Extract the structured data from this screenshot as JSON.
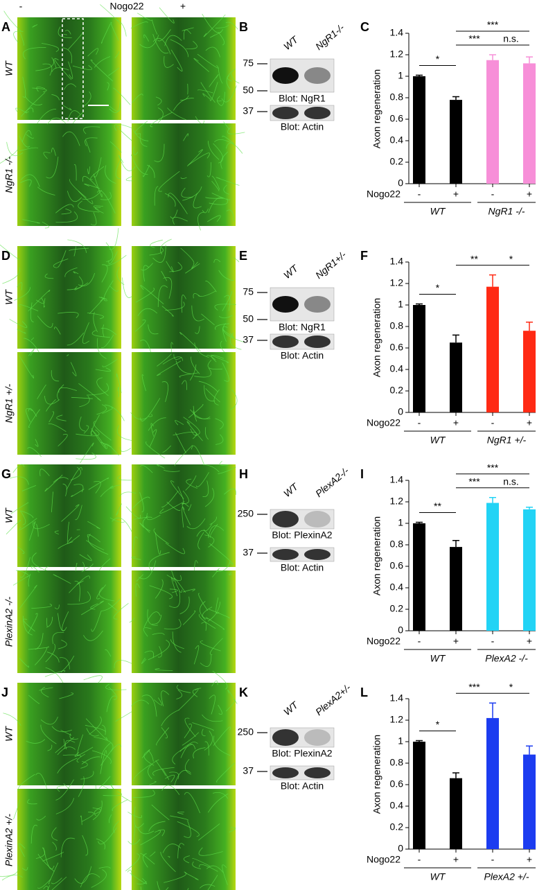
{
  "header": {
    "minus": "-",
    "title": "Nogo22",
    "plus": "+"
  },
  "rows": [
    {
      "image_panel": "A",
      "row_labels": [
        "WT",
        "NgR1 -/-"
      ],
      "blot_panel": "B",
      "lanes": [
        "WT",
        "NgR1-/-"
      ],
      "markers": [
        "75",
        "50",
        "37"
      ],
      "blots": [
        "Blot: NgR1",
        "Blot: Actin"
      ]
    },
    {
      "image_panel": "D",
      "row_labels": [
        "WT",
        "NgR1 +/-"
      ],
      "blot_panel": "E",
      "lanes": [
        "WT",
        "NgR1+/-"
      ],
      "markers": [
        "75",
        "50",
        "37"
      ],
      "blots": [
        "Blot: NgR1",
        "Blot: Actin"
      ]
    },
    {
      "image_panel": "G",
      "row_labels": [
        "WT",
        "PlexinA2 -/-"
      ],
      "blot_panel": "H",
      "lanes": [
        "WT",
        "PlexA2-/-"
      ],
      "markers": [
        "250",
        "37"
      ],
      "blots": [
        "Blot: PlexinA2",
        "Blot: Actin"
      ]
    },
    {
      "image_panel": "J",
      "row_labels": [
        "WT",
        "PlexinA2 +/-"
      ],
      "blot_panel": "K",
      "lanes": [
        "WT",
        "PlexA2+/-"
      ],
      "markers": [
        "250",
        "37"
      ],
      "blots": [
        "Blot: PlexinA2",
        "Blot: Actin"
      ]
    }
  ],
  "chart_data": [
    {
      "type": "bar",
      "panel": "C",
      "ylabel": "Axon regeneration",
      "xlabel": "Nogo22",
      "categories": [
        "-",
        "+",
        "-",
        "+"
      ],
      "groups": [
        "WT",
        "NgR1 -/-"
      ],
      "values": [
        1.0,
        0.78,
        1.15,
        1.12
      ],
      "errors": [
        0.01,
        0.03,
        0.05,
        0.06
      ],
      "colors": [
        "#000000",
        "#000000",
        "#f78fd8",
        "#f78fd8"
      ],
      "ylim": [
        0,
        1.4
      ],
      "yticks": [
        0,
        0.2,
        0.4,
        0.6,
        0.8,
        1,
        1.2,
        1.4
      ],
      "significance": [
        {
          "label": "*",
          "pair": [
            0,
            1
          ]
        },
        {
          "label": "***",
          "pair": [
            1,
            2
          ]
        },
        {
          "label": "n.s.",
          "pair": [
            2,
            3
          ]
        },
        {
          "label": "***",
          "pair": [
            1,
            3
          ]
        }
      ]
    },
    {
      "type": "bar",
      "panel": "F",
      "ylabel": "Axon regeneration",
      "xlabel": "Nogo22",
      "categories": [
        "-",
        "+",
        "-",
        "+"
      ],
      "groups": [
        "WT",
        "NgR1 +/-"
      ],
      "values": [
        1.0,
        0.65,
        1.17,
        0.76
      ],
      "errors": [
        0.01,
        0.07,
        0.11,
        0.08
      ],
      "colors": [
        "#000000",
        "#000000",
        "#ff2a14",
        "#ff2a14"
      ],
      "ylim": [
        0,
        1.4
      ],
      "yticks": [
        0,
        0.2,
        0.4,
        0.6,
        0.8,
        1,
        1.2,
        1.4
      ],
      "significance": [
        {
          "label": "*",
          "pair": [
            0,
            1
          ]
        },
        {
          "label": "**",
          "pair": [
            1,
            2
          ]
        },
        {
          "label": "*",
          "pair": [
            2,
            3
          ]
        }
      ]
    },
    {
      "type": "bar",
      "panel": "I",
      "ylabel": "Axon regeneration",
      "xlabel": "Nogo22",
      "categories": [
        "-",
        "+",
        "-",
        "+"
      ],
      "groups": [
        "WT",
        "PlexA2 -/-"
      ],
      "values": [
        1.0,
        0.78,
        1.19,
        1.13
      ],
      "errors": [
        0.01,
        0.06,
        0.05,
        0.02
      ],
      "colors": [
        "#000000",
        "#000000",
        "#22d3f5",
        "#22d3f5"
      ],
      "ylim": [
        0,
        1.4
      ],
      "yticks": [
        0,
        0.2,
        0.4,
        0.6,
        0.8,
        1,
        1.2,
        1.4
      ],
      "significance": [
        {
          "label": "**",
          "pair": [
            0,
            1
          ]
        },
        {
          "label": "***",
          "pair": [
            1,
            2
          ]
        },
        {
          "label": "n.s.",
          "pair": [
            2,
            3
          ]
        },
        {
          "label": "***",
          "pair": [
            1,
            3
          ]
        }
      ]
    },
    {
      "type": "bar",
      "panel": "L",
      "ylabel": "Axon regeneration",
      "xlabel": "Nogo22",
      "categories": [
        "-",
        "+",
        "-",
        "+"
      ],
      "groups": [
        "WT",
        "PlexA2 +/-"
      ],
      "values": [
        1.0,
        0.66,
        1.22,
        0.88
      ],
      "errors": [
        0.01,
        0.05,
        0.14,
        0.08
      ],
      "colors": [
        "#000000",
        "#000000",
        "#1c3cf0",
        "#1c3cf0"
      ],
      "ylim": [
        0,
        1.4
      ],
      "yticks": [
        0,
        0.2,
        0.4,
        0.6,
        0.8,
        1,
        1.2,
        1.4
      ],
      "significance": [
        {
          "label": "*",
          "pair": [
            0,
            1
          ]
        },
        {
          "label": "***",
          "pair": [
            1,
            2
          ]
        },
        {
          "label": "*",
          "pair": [
            2,
            3
          ]
        }
      ]
    }
  ]
}
